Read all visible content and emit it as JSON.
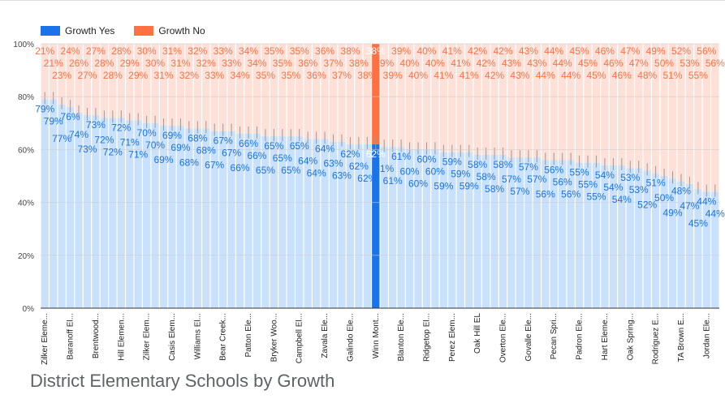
{
  "chart_data": {
    "type": "bar",
    "stacked": "percent",
    "title": "District Elementary Schools by Growth",
    "ylim": [
      0,
      100
    ],
    "yticks": [
      "0%",
      "20%",
      "40%",
      "60%",
      "80%",
      "100%"
    ],
    "grid": true,
    "legend": "top-left",
    "highlight_index": 39,
    "colors": {
      "yes": "#1a73e8",
      "no": "#ff7043",
      "yes_light": "#c9e1fb",
      "no_light": "#fde1d8"
    },
    "categories": [
      "Zilker Eleme...",
      "",
      "",
      "Baranoff El...",
      "",
      "",
      "Brentwood...",
      "",
      "",
      "Hill Elemen...",
      "",
      "",
      "Zilker Elem...",
      "",
      "",
      "Casis Elem...",
      "",
      "",
      "Williams El...",
      "",
      "",
      "Bear Creek...",
      "",
      "",
      "Patton Ele...",
      "",
      "",
      "Bryker Woo...",
      "",
      "",
      "Campbell El...",
      "",
      "",
      "Zavala Ele...",
      "",
      "",
      "Galindo Ele...",
      "",
      "",
      "Winn Mont...",
      "",
      "",
      "Blanton Ele...",
      "",
      "",
      "Ridgetop El...",
      "",
      "",
      "Perez Elem...",
      "",
      "",
      "Oak Hill EL",
      "",
      "",
      "Overton Ele...",
      "",
      "",
      "Govalle Ele...",
      "",
      "",
      "Pecan Spri...",
      "",
      "",
      "Padron Ele...",
      "",
      "",
      "Hart Eleme...",
      "",
      "",
      "Oak Spring...",
      "",
      "",
      "Rodriguez E...",
      "",
      "",
      "TA Brown E...",
      "",
      "",
      "Jordan Ele...",
      ""
    ],
    "series": [
      {
        "name": "Growth Yes",
        "values": [
          79,
          79,
          77,
          76,
          74,
          73,
          73,
          72,
          72,
          72,
          71,
          71,
          70,
          70,
          69,
          69,
          69,
          68,
          68,
          68,
          67,
          67,
          67,
          66,
          66,
          66,
          65,
          65,
          65,
          65,
          65,
          64,
          64,
          64,
          63,
          63,
          62,
          62,
          62,
          62,
          61,
          61,
          61,
          60,
          60,
          60,
          60,
          59,
          59,
          59,
          59,
          58,
          58,
          58,
          58,
          57,
          57,
          57,
          57,
          56,
          56,
          56,
          56,
          55,
          55,
          55,
          54,
          54,
          54,
          53,
          53,
          52,
          51,
          50,
          49,
          48,
          47,
          45,
          44,
          44
        ]
      },
      {
        "name": "Growth No",
        "values": [
          21,
          21,
          23,
          24,
          26,
          27,
          27,
          28,
          28,
          28,
          29,
          29,
          30,
          30,
          31,
          31,
          31,
          32,
          32,
          32,
          33,
          33,
          33,
          34,
          34,
          34,
          35,
          35,
          35,
          35,
          35,
          36,
          36,
          36,
          37,
          37,
          38,
          38,
          38,
          38,
          39,
          39,
          39,
          40,
          40,
          40,
          40,
          41,
          41,
          41,
          41,
          42,
          42,
          42,
          42,
          43,
          43,
          43,
          43,
          44,
          44,
          44,
          44,
          45,
          45,
          45,
          46,
          46,
          46,
          47,
          47,
          48,
          49,
          50,
          51,
          52,
          53,
          55,
          56,
          56
        ]
      }
    ]
  }
}
